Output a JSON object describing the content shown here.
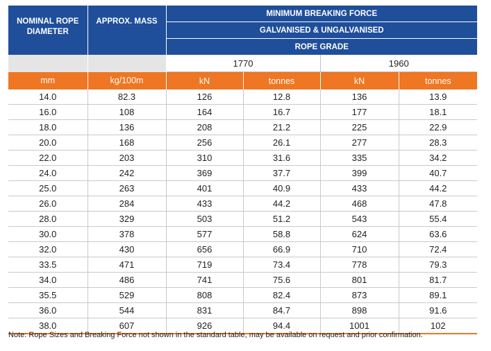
{
  "header": {
    "col1": "NOMINAL ROPE DIAMETER",
    "col2": "APPROX. MASS",
    "title": "MINIMUM BREAKING FORCE",
    "subtitle": "GALVANISED & UNGALVANISED",
    "grade_label": "ROPE GRADE",
    "grade_1": "1770",
    "grade_2": "1960"
  },
  "units": [
    "mm",
    "kg/100m",
    "kN",
    "tonnes",
    "kN",
    "tonnes"
  ],
  "rows": [
    [
      "14.0",
      "82.3",
      "126",
      "12.8",
      "136",
      "13.9"
    ],
    [
      "16.0",
      "108",
      "164",
      "16.7",
      "177",
      "18.1"
    ],
    [
      "18.0",
      "136",
      "208",
      "21.2",
      "225",
      "22.9"
    ],
    [
      "20.0",
      "168",
      "256",
      "26.1",
      "277",
      "28.3"
    ],
    [
      "22.0",
      "203",
      "310",
      "31.6",
      "335",
      "34.2"
    ],
    [
      "24.0",
      "242",
      "369",
      "37.7",
      "399",
      "40.7"
    ],
    [
      "25.0",
      "263",
      "401",
      "40.9",
      "433",
      "44.2"
    ],
    [
      "26.0",
      "284",
      "433",
      "44.2",
      "468",
      "47.8"
    ],
    [
      "28.0",
      "329",
      "503",
      "51.2",
      "543",
      "55.4"
    ],
    [
      "30.0",
      "378",
      "577",
      "58.8",
      "624",
      "63.6"
    ],
    [
      "32.0",
      "430",
      "656",
      "66.9",
      "710",
      "72.4"
    ],
    [
      "33.5",
      "471",
      "719",
      "73.4",
      "778",
      "79.3"
    ],
    [
      "34.0",
      "486",
      "741",
      "75.6",
      "801",
      "81.7"
    ],
    [
      "35.5",
      "529",
      "808",
      "82.4",
      "873",
      "89.1"
    ],
    [
      "36.0",
      "544",
      "831",
      "84.7",
      "898",
      "91.6"
    ],
    [
      "38.0",
      "607",
      "926",
      "94.4",
      "1001",
      "102"
    ]
  ],
  "footnote": "Note:  Rope Sizes and Breaking Force not shown in the standard table, may be available on request and prior confirmation.",
  "colors": {
    "header_blue": "#1f4e9a",
    "unit_orange": "#ef7622",
    "grade_blank_grey": "#e5e5e5"
  }
}
